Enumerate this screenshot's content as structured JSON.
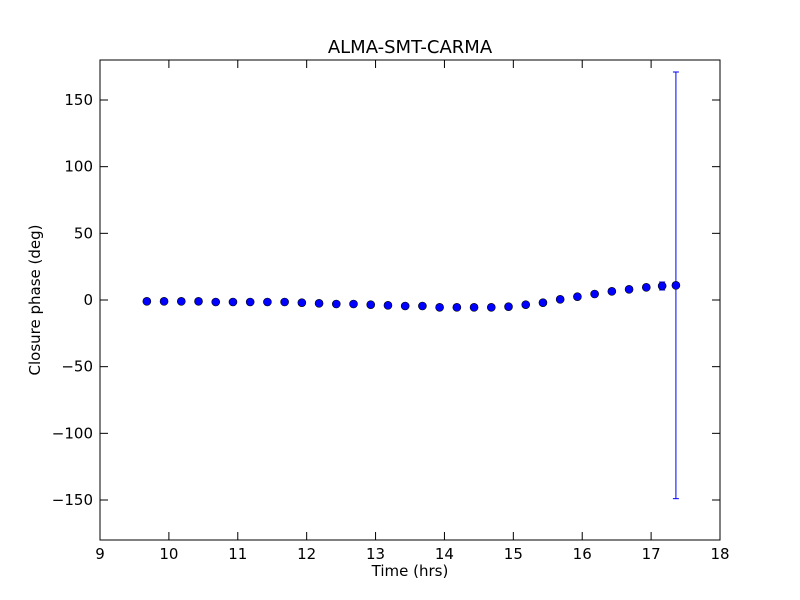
{
  "chart_data": {
    "type": "scatter",
    "title": "ALMA-SMT-CARMA",
    "xlabel": "Time (hrs)",
    "ylabel": "Closure phase (deg)",
    "xlim": [
      9,
      18
    ],
    "ylim": [
      -180,
      180
    ],
    "xticks": [
      "9",
      "10",
      "11",
      "12",
      "13",
      "14",
      "15",
      "16",
      "17",
      "18"
    ],
    "yticks": [
      "150",
      "100",
      "50",
      "0",
      "−50",
      "−100",
      "−150"
    ],
    "grid": false,
    "marker_color": "#0000ff",
    "errorbar_color": "#0000ff",
    "points": [
      {
        "x": 9.68,
        "y": -1.0,
        "err": 1.0
      },
      {
        "x": 9.93,
        "y": -1.0,
        "err": 1.0
      },
      {
        "x": 10.18,
        "y": -1.0,
        "err": 1.0
      },
      {
        "x": 10.43,
        "y": -1.0,
        "err": 1.0
      },
      {
        "x": 10.68,
        "y": -1.5,
        "err": 1.0
      },
      {
        "x": 10.93,
        "y": -1.5,
        "err": 1.0
      },
      {
        "x": 11.18,
        "y": -1.5,
        "err": 1.0
      },
      {
        "x": 11.43,
        "y": -1.5,
        "err": 1.0
      },
      {
        "x": 11.68,
        "y": -1.5,
        "err": 1.0
      },
      {
        "x": 11.93,
        "y": -2.0,
        "err": 1.0
      },
      {
        "x": 12.18,
        "y": -2.5,
        "err": 1.0
      },
      {
        "x": 12.43,
        "y": -3.0,
        "err": 1.0
      },
      {
        "x": 12.68,
        "y": -3.0,
        "err": 1.0
      },
      {
        "x": 12.93,
        "y": -3.5,
        "err": 1.0
      },
      {
        "x": 13.18,
        "y": -4.0,
        "err": 1.0
      },
      {
        "x": 13.43,
        "y": -4.5,
        "err": 1.0
      },
      {
        "x": 13.68,
        "y": -4.5,
        "err": 1.0
      },
      {
        "x": 13.93,
        "y": -5.5,
        "err": 1.0
      },
      {
        "x": 14.18,
        "y": -5.5,
        "err": 1.0
      },
      {
        "x": 14.43,
        "y": -5.5,
        "err": 1.0
      },
      {
        "x": 14.68,
        "y": -5.5,
        "err": 1.0
      },
      {
        "x": 14.93,
        "y": -5.0,
        "err": 1.0
      },
      {
        "x": 15.18,
        "y": -3.5,
        "err": 1.0
      },
      {
        "x": 15.43,
        "y": -2.0,
        "err": 1.0
      },
      {
        "x": 15.68,
        "y": 0.5,
        "err": 1.0
      },
      {
        "x": 15.93,
        "y": 2.5,
        "err": 1.0
      },
      {
        "x": 16.18,
        "y": 4.5,
        "err": 1.0
      },
      {
        "x": 16.43,
        "y": 6.5,
        "err": 1.0
      },
      {
        "x": 16.68,
        "y": 8.0,
        "err": 1.0
      },
      {
        "x": 16.93,
        "y": 9.5,
        "err": 1.5
      },
      {
        "x": 17.16,
        "y": 10.5,
        "err": 3.0
      },
      {
        "x": 17.36,
        "y": 11.0,
        "err": 160.0
      }
    ]
  }
}
